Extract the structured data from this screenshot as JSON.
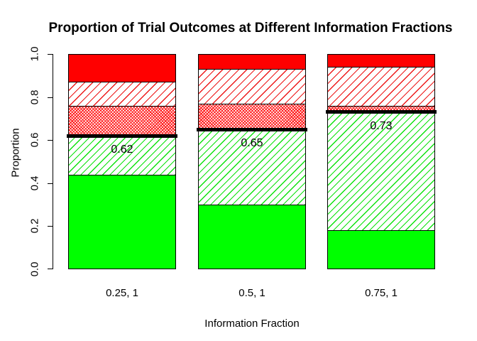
{
  "chart_data": {
    "type": "bar",
    "stacked": true,
    "title": "Proportion of Trial Outcomes at Different Information Fractions",
    "xlabel": "Information Fraction",
    "ylabel": "Proportion",
    "ylim": [
      0,
      1
    ],
    "ytick_labels": [
      "0.0",
      "0.2",
      "0.4",
      "0.6",
      "0.8",
      "1.0"
    ],
    "categories": [
      "0.25, 1",
      "0.5, 1",
      "0.75, 1"
    ],
    "series": [
      {
        "name": "solid green",
        "pattern": "solid-green",
        "values": [
          0.44,
          0.3,
          0.18
        ]
      },
      {
        "name": "green diagonal hatch",
        "pattern": "green-hatch",
        "values": [
          0.18,
          0.35,
          0.55
        ]
      },
      {
        "name": "dense red crosshatch",
        "pattern": "dense-red-hatch",
        "values": [
          0.14,
          0.12,
          0.03
        ]
      },
      {
        "name": "sparse red diagonal hatch",
        "pattern": "sparse-red-hatch",
        "values": [
          0.11,
          0.16,
          0.18
        ]
      },
      {
        "name": "solid red",
        "pattern": "solid-red",
        "values": [
          0.13,
          0.07,
          0.06
        ]
      }
    ],
    "annotations": [
      {
        "category": "0.25, 1",
        "value": 0.62,
        "label": "0.62"
      },
      {
        "category": "0.5, 1",
        "value": 0.65,
        "label": "0.65"
      },
      {
        "category": "0.75, 1",
        "value": 0.73,
        "label": "0.73"
      }
    ],
    "legend": "none",
    "grid": "off",
    "colors": {
      "green": "#00FF00",
      "red": "#FF0000",
      "threshold_line": "#000000",
      "bar_border": "#000000",
      "background": "#FFFFFF",
      "text": "#000000"
    }
  }
}
